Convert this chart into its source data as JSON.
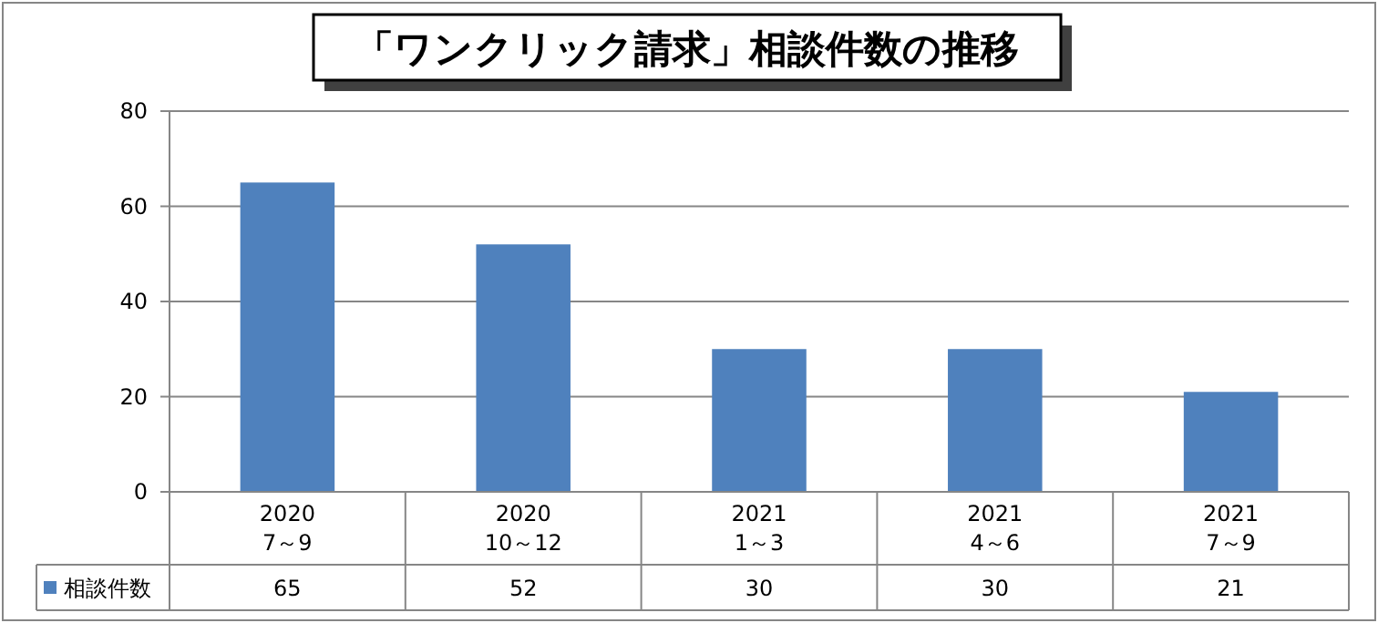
{
  "chart_data": {
    "type": "bar",
    "title": "「ワンクリック請求」相談件数の推移",
    "categories": [
      "2020\n7～9",
      "2020\n10～12",
      "2021\n1～3",
      "2021\n4～6",
      "2021\n7～9"
    ],
    "series": [
      {
        "name": "相談件数",
        "color": "#4f81bd",
        "values": [
          65,
          52,
          30,
          30,
          21
        ]
      }
    ],
    "ylim": [
      0,
      80
    ],
    "yticks": [
      0,
      20,
      40,
      60,
      80
    ],
    "grid": "y",
    "legend": "bottom",
    "data_labels": true
  }
}
